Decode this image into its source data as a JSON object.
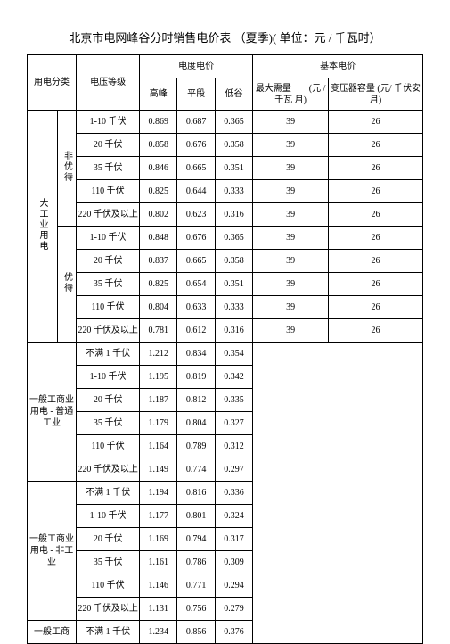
{
  "title": "北京市电网峰谷分时销售电价表 （夏季)( 单位：元 / 千瓦时）",
  "headers": {
    "cat": "用电分类",
    "volt": "电压等级",
    "energy": "电度电价",
    "basic": "基本电价",
    "peak": "高峰",
    "flat": "平段",
    "valley": "低谷",
    "demand": "最大需量　　(元 / 千瓦  月)",
    "trans": "变压器容量 (元/ 千伏安   月)"
  },
  "cats": {
    "big": "大工业用电",
    "nonpref": "非优待",
    "pref": "优待",
    "gen1": "一般工商业用电 - 普通工业",
    "gen2": "一般工商业用电 - 非工业",
    "gen3": "一般工商"
  },
  "volts": {
    "v1": "1-10 千伏",
    "v2": "20 千伏",
    "v3": "35 千伏",
    "v4": "110 千伏",
    "v5": "220 千伏及以上",
    "u1": "不满 1 千伏"
  },
  "rows": {
    "np1": {
      "p": "0.869",
      "f": "0.687",
      "v": "0.365",
      "d": "39",
      "t": "26"
    },
    "np2": {
      "p": "0.858",
      "f": "0.676",
      "v": "0.358",
      "d": "39",
      "t": "26"
    },
    "np3": {
      "p": "0.846",
      "f": "0.665",
      "v": "0.351",
      "d": "39",
      "t": "26"
    },
    "np4": {
      "p": "0.825",
      "f": "0.644",
      "v": "0.333",
      "d": "39",
      "t": "26"
    },
    "np5": {
      "p": "0.802",
      "f": "0.623",
      "v": "0.316",
      "d": "39",
      "t": "26"
    },
    "pf1": {
      "p": "0.848",
      "f": "0.676",
      "v": "0.365",
      "d": "39",
      "t": "26"
    },
    "pf2": {
      "p": "0.837",
      "f": "0.665",
      "v": "0.358",
      "d": "39",
      "t": "26"
    },
    "pf3": {
      "p": "0.825",
      "f": "0.654",
      "v": "0.351",
      "d": "39",
      "t": "26"
    },
    "pf4": {
      "p": "0.804",
      "f": "0.633",
      "v": "0.333",
      "d": "39",
      "t": "26"
    },
    "pf5": {
      "p": "0.781",
      "f": "0.612",
      "v": "0.316",
      "d": "39",
      "t": "26"
    },
    "g11": {
      "p": "1.212",
      "f": "0.834",
      "v": "0.354"
    },
    "g12": {
      "p": "1.195",
      "f": "0.819",
      "v": "0.342"
    },
    "g13": {
      "p": "1.187",
      "f": "0.812",
      "v": "0.335"
    },
    "g14": {
      "p": "1.179",
      "f": "0.804",
      "v": "0.327"
    },
    "g15": {
      "p": "1.164",
      "f": "0.789",
      "v": "0.312"
    },
    "g16": {
      "p": "1.149",
      "f": "0.774",
      "v": "0.297"
    },
    "g21": {
      "p": "1.194",
      "f": "0.816",
      "v": "0.336"
    },
    "g22": {
      "p": "1.177",
      "f": "0.801",
      "v": "0.324"
    },
    "g23": {
      "p": "1.169",
      "f": "0.794",
      "v": "0.317"
    },
    "g24": {
      "p": "1.161",
      "f": "0.786",
      "v": "0.309"
    },
    "g25": {
      "p": "1.146",
      "f": "0.771",
      "v": "0.294"
    },
    "g26": {
      "p": "1.131",
      "f": "0.756",
      "v": "0.279"
    },
    "g31": {
      "p": "1.234",
      "f": "0.856",
      "v": "0.376"
    }
  }
}
